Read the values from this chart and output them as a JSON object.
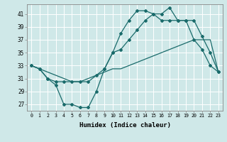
{
  "xlabel": "Humidex (Indice chaleur)",
  "bg_color": "#cfe8e8",
  "grid_color": "#ffffff",
  "line_color": "#1a6b6b",
  "xlim": [
    -0.5,
    23.5
  ],
  "ylim": [
    26.0,
    42.5
  ],
  "xticks": [
    0,
    1,
    2,
    3,
    4,
    5,
    6,
    7,
    8,
    9,
    10,
    11,
    12,
    13,
    14,
    15,
    16,
    17,
    18,
    19,
    20,
    21,
    22,
    23
  ],
  "yticks": [
    27,
    29,
    31,
    33,
    35,
    37,
    39,
    41
  ],
  "seriesA": [
    33,
    32.5,
    31,
    30.5,
    30.5,
    30.5,
    30.5,
    30.5,
    31.5,
    32.5,
    35,
    35.5,
    37,
    38.5,
    40,
    41,
    41,
    42,
    40,
    40,
    37,
    35.5,
    33,
    32
  ],
  "seriesB": [
    33,
    32.5,
    32,
    31.5,
    31,
    30.5,
    30.5,
    31,
    31.5,
    32,
    32.5,
    32.5,
    33,
    33.5,
    34,
    34.5,
    35,
    35.5,
    36,
    36.5,
    37,
    37,
    37,
    32
  ],
  "seriesC": [
    33,
    32.5,
    31,
    30,
    27,
    27,
    26.5,
    26.5,
    29,
    32.5,
    35,
    38,
    40,
    41.5,
    41.5,
    41,
    40,
    40,
    40,
    40,
    40,
    37.5,
    35,
    32
  ]
}
